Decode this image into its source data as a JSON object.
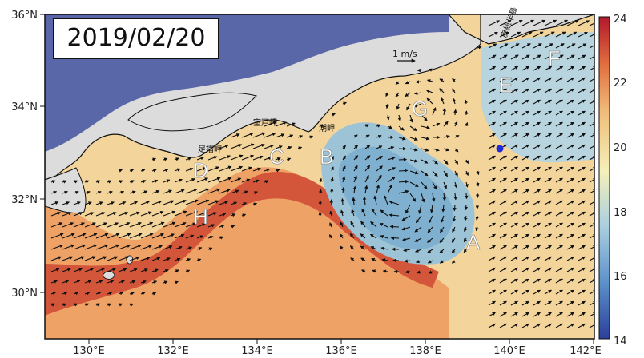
{
  "date": "2019/02/20",
  "latitude_labels": [
    "36°N",
    "34°N",
    "32°N",
    "30°N"
  ],
  "longitude_labels": [
    "130°E",
    "132°E",
    "134°E",
    "136°E",
    "138°E",
    "140°E",
    "142°E"
  ],
  "colorbar": {
    "ticks": [
      "24",
      "22",
      "20",
      "18",
      "16",
      "14"
    ],
    "range": [
      14,
      24
    ],
    "colormap": [
      "#2b3f9a",
      "#5b8fc8",
      "#a9cfe0",
      "#f4f0b8",
      "#f1be7a",
      "#e2703f",
      "#b2182b"
    ]
  },
  "reference_vector": "1 m/s",
  "region_labels": [
    "A",
    "B",
    "C",
    "D",
    "E",
    "F",
    "G",
    "H"
  ],
  "place_labels": {
    "ashizuri": "足摺岬",
    "muroto": "室戸岬",
    "shiono": "潮岬",
    "boso": "房総半島"
  },
  "colors": {
    "land": "#dcdcdc",
    "coastline": "#111111",
    "vector": "#111111",
    "marker": "#1f2bd9"
  }
}
